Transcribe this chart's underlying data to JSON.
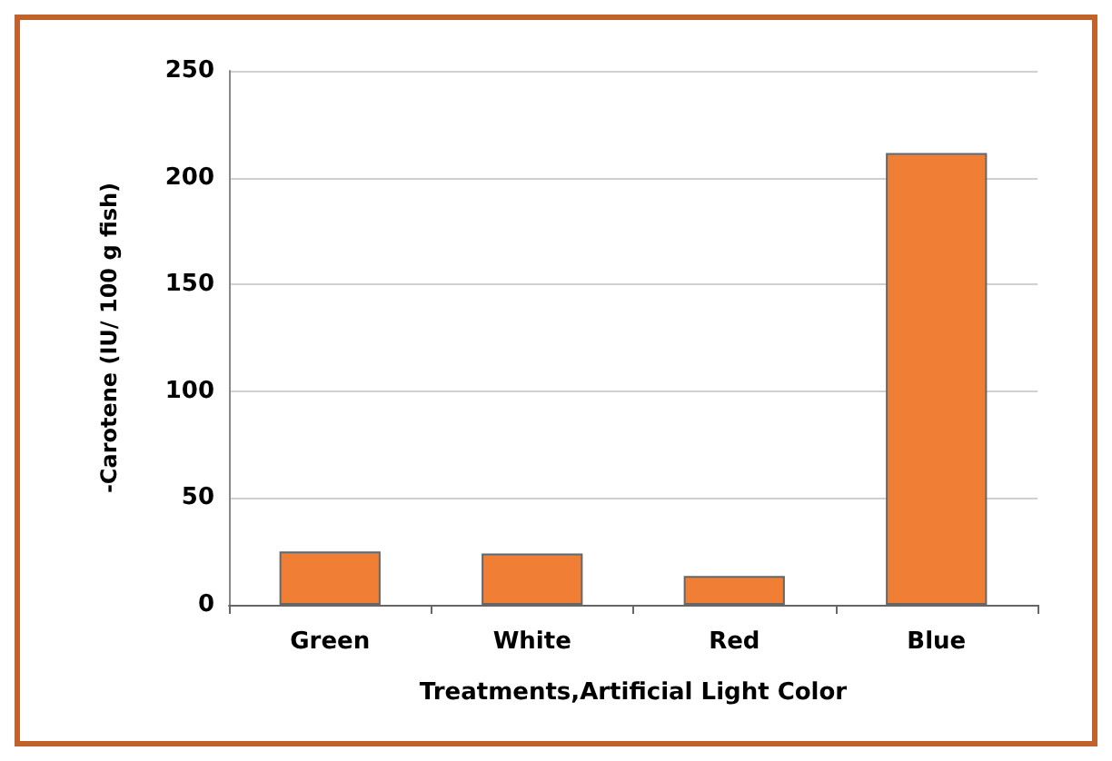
{
  "chart_data": {
    "type": "bar",
    "xlabel": "Treatments,Artificial Light Color",
    "ylabel": "-Carotene (IU/ 100 g fish)",
    "categories": [
      "Green",
      "White",
      "Red",
      "Blue"
    ],
    "values": [
      25,
      24,
      13.5,
      211.5
    ],
    "color": "#f07f35",
    "ylim": [
      0,
      250
    ],
    "yticks": [
      0,
      50,
      100,
      150,
      200,
      250
    ],
    "grid": "y"
  }
}
